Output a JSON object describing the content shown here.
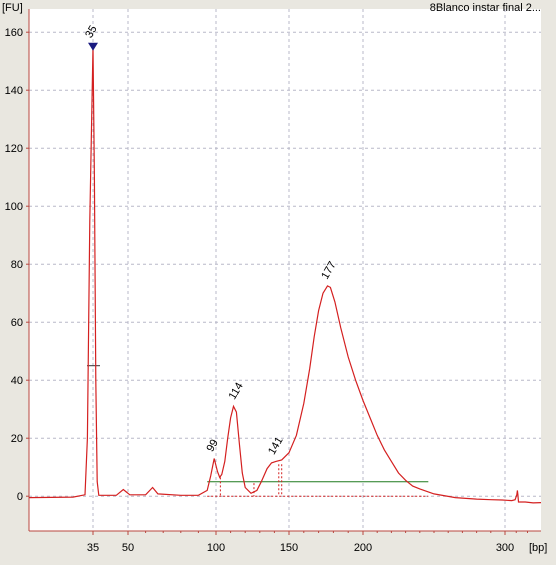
{
  "title": "8Blanco instar final 2...",
  "y_unit": "[FU]",
  "x_unit": "[bp]",
  "colors": {
    "background": "#e9e7e0",
    "plot_bg": "#ffffff",
    "trace": "#d42020",
    "grid": "#b8b8c8",
    "baseline_marker": "#1e7a1e",
    "selected_marker": "#1a1a80",
    "selected_label": "#1e7a1e",
    "axis": "#b9473f"
  },
  "chart_data": {
    "type": "line",
    "title": "8Blanco instar final 2...",
    "ylabel": "[FU]",
    "xlabel": "[bp]",
    "ylim": [
      -12,
      168
    ],
    "y_ticks": [
      "0",
      "20",
      "40",
      "60",
      "80",
      "100",
      "120",
      "140",
      "160"
    ],
    "x_ticks": [
      "35",
      "50",
      "100",
      "150",
      "200",
      "300"
    ],
    "grid": true,
    "series": [
      {
        "values": [
          [
            19,
            -0.5
          ],
          [
            30,
            -0.3
          ],
          [
            33,
            0.5
          ],
          [
            33.6,
            20
          ],
          [
            34.2,
            95
          ],
          [
            35,
            155
          ],
          [
            35.6,
            110
          ],
          [
            36.2,
            40
          ],
          [
            36.8,
            5
          ],
          [
            37.5,
            0.3
          ],
          [
            45,
            0.3
          ],
          [
            48,
            2.3
          ],
          [
            51,
            0.5
          ],
          [
            60,
            0.5
          ],
          [
            64,
            3
          ],
          [
            67,
            0.8
          ],
          [
            80,
            0.3
          ],
          [
            90,
            0.3
          ],
          [
            95,
            2
          ],
          [
            97,
            7
          ],
          [
            99,
            13
          ],
          [
            101,
            8.5
          ],
          [
            102.5,
            6.5
          ],
          [
            104,
            7.5
          ],
          [
            106,
            12
          ],
          [
            108,
            20
          ],
          [
            110,
            27
          ],
          [
            112,
            31
          ],
          [
            114,
            29
          ],
          [
            116,
            18
          ],
          [
            118,
            8
          ],
          [
            120,
            3
          ],
          [
            124,
            1
          ],
          [
            128,
            2
          ],
          [
            131,
            5
          ],
          [
            135,
            9.5
          ],
          [
            138,
            11.5
          ],
          [
            141,
            12
          ],
          [
            145,
            12.5
          ],
          [
            150,
            15
          ],
          [
            155,
            21
          ],
          [
            160,
            32
          ],
          [
            164,
            44
          ],
          [
            167,
            55
          ],
          [
            170,
            64
          ],
          [
            173,
            70
          ],
          [
            176,
            72.5
          ],
          [
            178,
            72
          ],
          [
            181,
            67
          ],
          [
            185,
            58
          ],
          [
            190,
            48
          ],
          [
            195,
            40
          ],
          [
            200,
            33
          ],
          [
            205,
            27
          ],
          [
            210,
            21
          ],
          [
            215,
            16
          ],
          [
            220,
            12
          ],
          [
            225,
            8
          ],
          [
            230,
            5.5
          ],
          [
            235,
            3.5
          ],
          [
            240,
            2.5
          ],
          [
            250,
            0.8
          ],
          [
            265,
            -0.5
          ],
          [
            280,
            -1
          ],
          [
            290,
            -1.2
          ],
          [
            298,
            -1.3
          ],
          [
            306,
            -1.5
          ],
          [
            309,
            -1.2
          ],
          [
            310.5,
            0.5
          ],
          [
            311,
            2
          ],
          [
            311.5,
            0.5
          ],
          [
            312,
            -2
          ],
          [
            318,
            -2
          ],
          [
            325,
            -2.3
          ],
          [
            332,
            -2.2
          ]
        ]
      }
    ],
    "peak_labels": [
      {
        "x": 35,
        "y": 155,
        "text": "35"
      },
      {
        "x": 99,
        "y": 13,
        "text": "99"
      },
      {
        "x": 114,
        "y": 31,
        "text": "114"
      },
      {
        "x": 141,
        "y": 12,
        "text": "141"
      },
      {
        "x": 177,
        "y": 72.5,
        "text": "177"
      }
    ],
    "baseline_segments": [
      {
        "x1": 33.5,
        "x2": 38,
        "y": 45
      },
      {
        "x1": 95,
        "x2": 246,
        "y": 5
      }
    ],
    "dashed_baseline": {
      "x1": 95,
      "x2": 246,
      "y": 0
    },
    "region_markers": [
      {
        "x": 103,
        "y_top": 6.5
      },
      {
        "x": 126,
        "y_top": 4.5
      },
      {
        "x": 143,
        "y_top": 11
      },
      {
        "x": 145,
        "y_top": 11
      }
    ]
  }
}
